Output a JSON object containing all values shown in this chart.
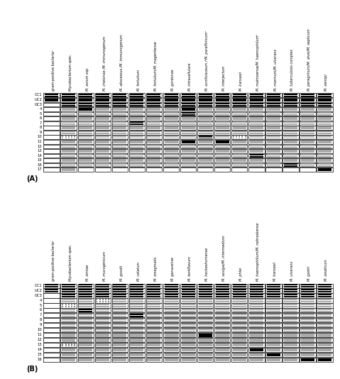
{
  "panel_A_title": "(A)",
  "panel_B_title": "(B)",
  "panel_A_columns": [
    "gram-positive bacteriaᵃ",
    "Mycobacterium spec.",
    "M. avium ssp.",
    "M. chelonae /M. immunogenum",
    "M. abscessus /M. immunogenum",
    "M. fortuitum",
    "M. fortuitum/M. mageritense",
    "M. gordonae",
    "M. intracellulare",
    "M. scrofulaceum /ᵃM. paraffinicumᵃ",
    "M. interjectum",
    "M. kansasii",
    "M. malmoense/M. haemophilumᵇ",
    "M. marinum/M. ulcerans",
    "M. tuberculosis complex",
    "M. peregrinum/M. alvei/M. septicum",
    "M. xenopi"
  ],
  "panel_A_rows": [
    "CC1",
    "UC2",
    "GC3",
    "4",
    "5",
    "6",
    "7",
    "8",
    "9",
    "10",
    "11",
    "12",
    "13",
    "14",
    "15",
    "16",
    "17"
  ],
  "panel_B_columns": [
    "gram-positive bacteriaᵃ",
    "Mycobacterium spec.",
    "M. simiae",
    "M. mucogenicum",
    "M. goodii",
    "M. celatum",
    "M. smegmatis",
    "M. genavense",
    "M. lentiflavum",
    "M. heckeshornense",
    "M. szulgai/M. intermedium",
    "M. phlei",
    "M. haemophilium/M. nebraskense",
    "M. kansasii",
    "M. ulcerans",
    "M. gastri",
    "M. asiaticum"
  ],
  "panel_B_rows": [
    "CC1",
    "UC2",
    "GC3",
    "4",
    "5",
    "6",
    "7",
    "8",
    "9",
    "10",
    "11",
    "12",
    "13",
    "14",
    "15",
    "16"
  ],
  "panel_A_pattern": [
    [
      3,
      3,
      3,
      3,
      3,
      3,
      3,
      3,
      3,
      3,
      3,
      3,
      3,
      3,
      3,
      3,
      3
    ],
    [
      3,
      3,
      3,
      3,
      3,
      3,
      3,
      3,
      3,
      3,
      3,
      3,
      3,
      3,
      3,
      3,
      3
    ],
    [
      0,
      3,
      3,
      3,
      3,
      3,
      3,
      3,
      3,
      3,
      3,
      3,
      3,
      3,
      3,
      3,
      3
    ],
    [
      0,
      1,
      3,
      1,
      1,
      1,
      1,
      1,
      3,
      1,
      1,
      1,
      1,
      1,
      1,
      1,
      1
    ],
    [
      0,
      1,
      1,
      1,
      1,
      1,
      1,
      1,
      3,
      1,
      1,
      1,
      1,
      1,
      1,
      1,
      1
    ],
    [
      0,
      1,
      1,
      1,
      1,
      1,
      1,
      1,
      1,
      1,
      1,
      1,
      1,
      1,
      1,
      1,
      1
    ],
    [
      0,
      1,
      1,
      1,
      1,
      3,
      1,
      1,
      1,
      1,
      1,
      1,
      1,
      1,
      1,
      1,
      1
    ],
    [
      0,
      1,
      1,
      1,
      1,
      1,
      1,
      1,
      1,
      1,
      1,
      1,
      1,
      1,
      1,
      1,
      1
    ],
    [
      0,
      1,
      1,
      1,
      1,
      1,
      1,
      1,
      1,
      1,
      1,
      1,
      1,
      1,
      1,
      1,
      1
    ],
    [
      0,
      2,
      1,
      1,
      1,
      1,
      1,
      1,
      1,
      3,
      1,
      2,
      1,
      1,
      1,
      1,
      1
    ],
    [
      0,
      1,
      1,
      1,
      1,
      1,
      1,
      1,
      3,
      1,
      3,
      1,
      1,
      1,
      1,
      1,
      1
    ],
    [
      0,
      1,
      1,
      1,
      1,
      1,
      1,
      1,
      1,
      1,
      1,
      1,
      1,
      1,
      1,
      1,
      1
    ],
    [
      0,
      1,
      1,
      1,
      1,
      1,
      1,
      1,
      1,
      1,
      1,
      1,
      1,
      1,
      1,
      1,
      1
    ],
    [
      0,
      1,
      1,
      1,
      1,
      1,
      1,
      1,
      1,
      1,
      1,
      1,
      3,
      1,
      1,
      1,
      1
    ],
    [
      0,
      1,
      1,
      1,
      1,
      1,
      1,
      1,
      1,
      1,
      1,
      1,
      1,
      1,
      1,
      1,
      1
    ],
    [
      0,
      1,
      1,
      1,
      1,
      1,
      1,
      1,
      1,
      1,
      1,
      1,
      1,
      1,
      3,
      1,
      1
    ],
    [
      0,
      1,
      0,
      0,
      0,
      0,
      0,
      0,
      0,
      0,
      0,
      0,
      0,
      0,
      0,
      0,
      3
    ]
  ],
  "panel_B_pattern": [
    [
      3,
      3,
      3,
      3,
      3,
      3,
      3,
      3,
      3,
      3,
      3,
      3,
      3,
      3,
      3,
      3,
      3
    ],
    [
      3,
      3,
      3,
      3,
      3,
      3,
      3,
      3,
      3,
      3,
      3,
      3,
      3,
      3,
      3,
      3,
      3
    ],
    [
      0,
      3,
      3,
      3,
      3,
      3,
      3,
      3,
      3,
      3,
      3,
      3,
      3,
      3,
      3,
      3,
      3
    ],
    [
      0,
      1,
      1,
      2,
      1,
      1,
      1,
      1,
      1,
      1,
      1,
      1,
      1,
      1,
      1,
      1,
      1
    ],
    [
      0,
      2,
      1,
      1,
      1,
      1,
      1,
      1,
      1,
      1,
      1,
      1,
      1,
      1,
      1,
      1,
      1
    ],
    [
      0,
      1,
      3,
      1,
      1,
      1,
      1,
      1,
      1,
      1,
      1,
      1,
      1,
      1,
      1,
      1,
      1
    ],
    [
      0,
      1,
      1,
      1,
      1,
      3,
      1,
      1,
      1,
      1,
      1,
      1,
      1,
      1,
      1,
      1,
      1
    ],
    [
      0,
      1,
      1,
      1,
      1,
      1,
      1,
      1,
      1,
      1,
      1,
      1,
      1,
      1,
      1,
      1,
      1
    ],
    [
      0,
      1,
      1,
      1,
      1,
      1,
      1,
      1,
      1,
      1,
      1,
      1,
      1,
      1,
      1,
      1,
      1
    ],
    [
      0,
      1,
      1,
      1,
      1,
      1,
      1,
      1,
      1,
      1,
      1,
      1,
      1,
      1,
      1,
      1,
      1
    ],
    [
      0,
      1,
      1,
      1,
      1,
      1,
      1,
      1,
      1,
      3,
      1,
      1,
      1,
      1,
      1,
      1,
      1
    ],
    [
      0,
      1,
      1,
      1,
      1,
      1,
      1,
      1,
      1,
      1,
      1,
      1,
      1,
      1,
      1,
      1,
      1
    ],
    [
      0,
      2,
      1,
      1,
      1,
      1,
      1,
      1,
      1,
      1,
      1,
      1,
      1,
      1,
      1,
      1,
      1
    ],
    [
      0,
      1,
      1,
      1,
      1,
      1,
      1,
      1,
      1,
      1,
      1,
      1,
      3,
      1,
      1,
      1,
      1
    ],
    [
      0,
      1,
      1,
      1,
      1,
      1,
      1,
      1,
      1,
      1,
      1,
      1,
      1,
      3,
      1,
      1,
      1
    ],
    [
      0,
      1,
      1,
      1,
      1,
      1,
      1,
      1,
      1,
      1,
      1,
      1,
      1,
      1,
      1,
      3,
      3
    ]
  ]
}
